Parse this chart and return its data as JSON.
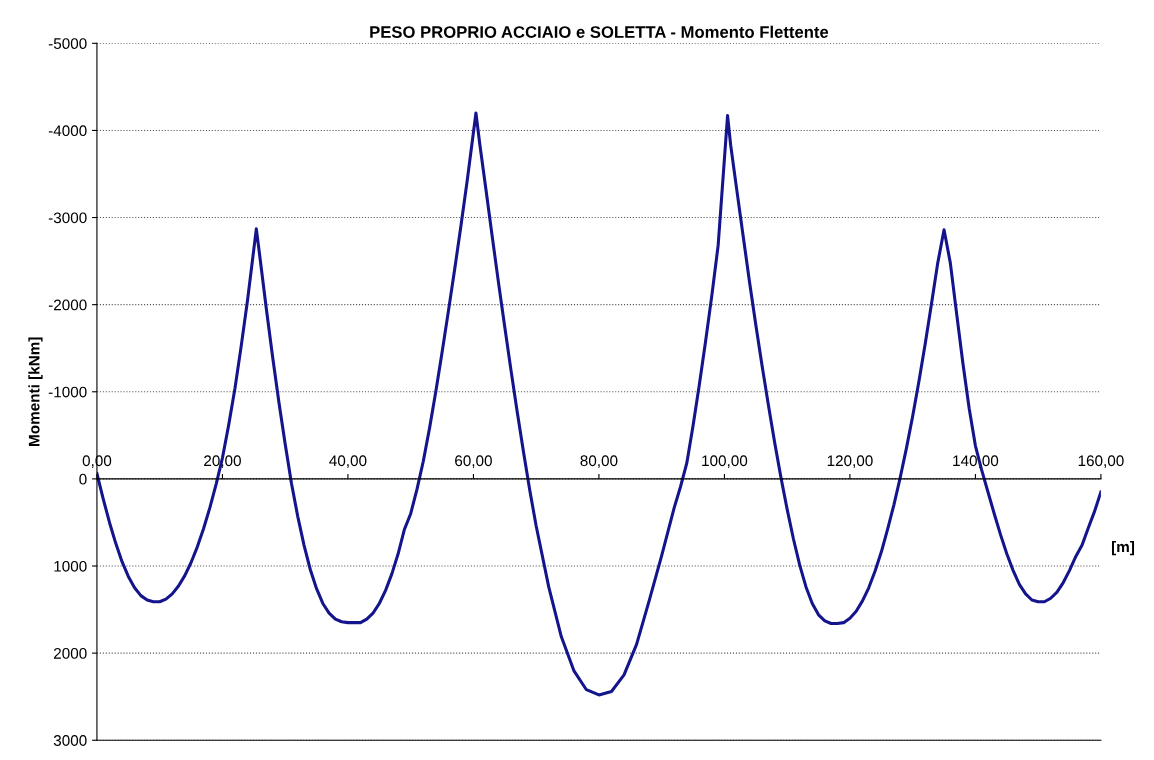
{
  "chart_data": {
    "type": "line",
    "title": "PESO PROPRIO ACCIAIO e SOLETTA - Momento Flettente",
    "xlabel": "[m]",
    "ylabel": "Momenti [kNm]",
    "xlim": [
      0,
      160
    ],
    "ylim": [
      3000,
      -5000
    ],
    "xticks": [
      {
        "value": 0,
        "label": "0,00"
      },
      {
        "value": 20,
        "label": "20,00"
      },
      {
        "value": 40,
        "label": "40,00"
      },
      {
        "value": 60,
        "label": "60,00"
      },
      {
        "value": 80,
        "label": "80,00"
      },
      {
        "value": 100,
        "label": "100,00"
      },
      {
        "value": 120,
        "label": "120,00"
      },
      {
        "value": 140,
        "label": "140,00"
      },
      {
        "value": 160,
        "label": "160,00"
      }
    ],
    "yticks": [
      -5000,
      -4000,
      -3000,
      -2000,
      -1000,
      0,
      1000,
      2000,
      3000
    ],
    "grid": "y",
    "marker": "none",
    "line_style": "solid",
    "series": [
      {
        "color": "#14148c",
        "x": [
          0,
          1,
          2,
          3,
          4,
          5,
          6,
          7,
          8,
          9,
          10,
          11,
          12,
          13,
          14,
          15,
          16,
          17,
          18,
          19,
          20,
          21,
          22,
          23,
          24,
          25.4,
          26,
          27,
          28,
          29,
          30,
          31,
          32,
          33,
          34,
          35,
          36,
          37,
          38,
          39,
          40,
          41,
          42,
          43,
          44,
          45,
          46,
          47,
          48,
          49,
          50,
          51,
          52,
          53,
          54,
          55,
          56,
          57,
          58,
          59,
          60.4,
          61,
          62,
          63,
          64,
          65,
          66,
          67,
          68,
          69,
          70,
          72,
          74,
          76,
          78,
          80,
          82,
          84,
          86,
          88,
          90,
          92,
          93,
          94,
          95,
          96,
          97,
          98,
          99,
          100.5,
          101,
          102,
          103,
          104,
          105,
          106,
          107,
          108,
          109,
          110,
          111,
          112,
          113,
          114,
          115,
          116,
          117,
          118,
          119,
          120,
          121,
          122,
          123,
          124,
          125,
          126,
          127,
          128,
          129,
          130,
          131,
          132,
          133,
          134,
          135,
          136,
          137,
          138,
          139,
          140,
          141,
          142,
          143,
          144,
          145,
          146,
          147,
          148,
          149,
          150,
          151,
          152,
          153,
          154,
          155,
          156,
          157,
          158,
          159,
          160
        ],
        "values": [
          -60,
          230,
          500,
          740,
          950,
          1120,
          1250,
          1340,
          1390,
          1410,
          1410,
          1380,
          1320,
          1230,
          1110,
          960,
          780,
          570,
          330,
          60,
          -240,
          -620,
          -1040,
          -1530,
          -2050,
          -2870,
          -2530,
          -1950,
          -1400,
          -880,
          -400,
          50,
          430,
          760,
          1040,
          1260,
          1430,
          1540,
          1610,
          1640,
          1650,
          1650,
          1650,
          1610,
          1540,
          1430,
          1280,
          1090,
          860,
          580,
          400,
          120,
          -200,
          -580,
          -1000,
          -1450,
          -1920,
          -2400,
          -2900,
          -3420,
          -4200,
          -3850,
          -3320,
          -2780,
          -2250,
          -1740,
          -1240,
          -760,
          -300,
          140,
          540,
          1240,
          1810,
          2200,
          2420,
          2480,
          2440,
          2250,
          1900,
          1400,
          880,
          330,
          90,
          -180,
          -610,
          -1080,
          -1580,
          -2110,
          -2680,
          -4170,
          -3830,
          -3300,
          -2780,
          -2260,
          -1770,
          -1300,
          -850,
          -420,
          -20,
          350,
          690,
          990,
          1240,
          1430,
          1560,
          1630,
          1660,
          1660,
          1650,
          1600,
          1520,
          1400,
          1250,
          1060,
          840,
          580,
          300,
          -10,
          -350,
          -720,
          -1120,
          -1550,
          -2010,
          -2480,
          -2860,
          -2480,
          -1900,
          -1330,
          -810,
          -380,
          -100,
          150,
          400,
          640,
          860,
          1050,
          1210,
          1320,
          1390,
          1410,
          1410,
          1370,
          1300,
          1190,
          1050,
          890,
          760,
          560,
          370,
          150
        ]
      }
    ]
  }
}
